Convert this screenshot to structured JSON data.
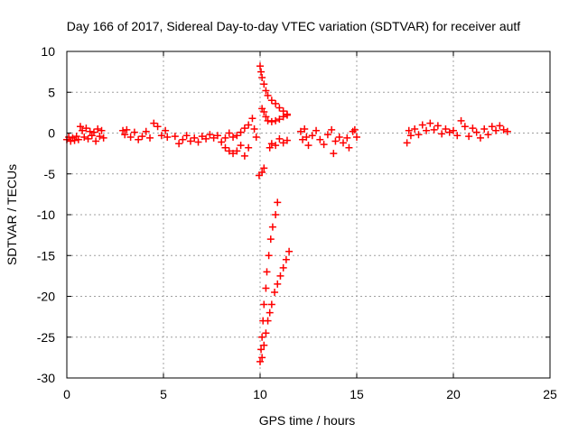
{
  "chart_data": {
    "type": "scatter",
    "title": "Day 166 of 2017, Sidereal Day-to-day VTEC variation (SDTVAR) for receiver autf",
    "xlabel": "GPS time / hours",
    "ylabel": "SDTVAR / TECUs",
    "xlim": [
      0,
      25
    ],
    "ylim": [
      -30,
      10
    ],
    "xticks": [
      0,
      5,
      10,
      15,
      20,
      25
    ],
    "yticks": [
      10,
      5,
      0,
      -5,
      -10,
      -15,
      -20,
      -25,
      -30
    ],
    "grid": true,
    "marker": "+",
    "color": "#ff0000",
    "series": [
      {
        "name": "SDTVAR",
        "points": [
          [
            0,
            -0.8
          ],
          [
            0.1,
            -0.5
          ],
          [
            0.2,
            -1
          ],
          [
            0.3,
            -0.6
          ],
          [
            0.4,
            -0.9
          ],
          [
            0.5,
            -0.4
          ],
          [
            0.6,
            -0.8
          ],
          [
            0.7,
            0.8
          ],
          [
            0.8,
            0.3
          ],
          [
            0.9,
            -0.5
          ],
          [
            1.0,
            0.6
          ],
          [
            1.1,
            -0.7
          ],
          [
            1.2,
            0.2
          ],
          [
            1.3,
            -0.3
          ],
          [
            1.4,
            0.1
          ],
          [
            1.5,
            -1
          ],
          [
            1.6,
            0.5
          ],
          [
            1.7,
            -0.4
          ],
          [
            1.8,
            0.3
          ],
          [
            1.9,
            -0.6
          ],
          [
            2.9,
            0.3
          ],
          [
            3.0,
            -0.2
          ],
          [
            3.1,
            0.4
          ],
          [
            3.3,
            -0.5
          ],
          [
            3.5,
            0.1
          ],
          [
            3.7,
            -0.8
          ],
          [
            3.9,
            -0.4
          ],
          [
            4.1,
            0.2
          ],
          [
            4.3,
            -0.6
          ],
          [
            4.5,
            1.2
          ],
          [
            4.7,
            0.8
          ],
          [
            4.9,
            -0.3
          ],
          [
            5.1,
            0.3
          ],
          [
            5.2,
            -0.5
          ],
          [
            5.6,
            -0.4
          ],
          [
            5.8,
            -1.3
          ],
          [
            6.0,
            -0.8
          ],
          [
            6.2,
            -0.3
          ],
          [
            6.4,
            -1.0
          ],
          [
            6.6,
            -0.6
          ],
          [
            6.8,
            -1.1
          ],
          [
            7.0,
            -0.4
          ],
          [
            7.2,
            -0.7
          ],
          [
            7.4,
            -0.2
          ],
          [
            7.6,
            -0.6
          ],
          [
            7.8,
            -0.3
          ],
          [
            8.0,
            -1.1
          ],
          [
            8.2,
            -1.8
          ],
          [
            8.4,
            -2.2
          ],
          [
            8.6,
            -2.5
          ],
          [
            8.8,
            -2.2
          ],
          [
            9.0,
            -1.5
          ],
          [
            9.2,
            -2.8
          ],
          [
            9.4,
            -1.8
          ],
          [
            8.4,
            0.0
          ],
          [
            8.6,
            -0.5
          ],
          [
            8.8,
            -0.3
          ],
          [
            9.0,
            0.1
          ],
          [
            9.2,
            0.6
          ],
          [
            9.4,
            1.0
          ],
          [
            9.6,
            1.8
          ],
          [
            8.2,
            -0.6
          ],
          [
            9.8,
            -0.5
          ],
          [
            9.7,
            0.5
          ],
          [
            10.0,
            8.2
          ],
          [
            10.05,
            7.5
          ],
          [
            10.1,
            6.8
          ],
          [
            10.2,
            6.0
          ],
          [
            10.3,
            5.2
          ],
          [
            10.4,
            4.6
          ],
          [
            10.6,
            4.0
          ],
          [
            10.8,
            3.6
          ],
          [
            11.0,
            3.1
          ],
          [
            11.2,
            2.7
          ],
          [
            11.4,
            2.3
          ],
          [
            10.1,
            3.0
          ],
          [
            10.2,
            2.6
          ],
          [
            10.3,
            2.0
          ],
          [
            10.4,
            1.5
          ],
          [
            10.6,
            1.4
          ],
          [
            10.8,
            1.5
          ],
          [
            11.0,
            1.7
          ],
          [
            11.2,
            2.0
          ],
          [
            11.4,
            2.2
          ],
          [
            10.5,
            -1.8
          ],
          [
            10.6,
            -1.3
          ],
          [
            10.8,
            -1.5
          ],
          [
            11.0,
            -0.7
          ],
          [
            11.2,
            -1.2
          ],
          [
            11.4,
            -0.9
          ],
          [
            9.95,
            -5.2
          ],
          [
            10.1,
            -4.8
          ],
          [
            10.2,
            -4.3
          ],
          [
            10.0,
            -28
          ],
          [
            10.05,
            -26.5
          ],
          [
            10.1,
            -25
          ],
          [
            10.15,
            -23
          ],
          [
            10.2,
            -21
          ],
          [
            10.3,
            -19
          ],
          [
            10.35,
            -17
          ],
          [
            10.45,
            -15
          ],
          [
            10.55,
            -13
          ],
          [
            10.65,
            -11.5
          ],
          [
            10.8,
            -10
          ],
          [
            10.9,
            -8.5
          ],
          [
            10.1,
            -27.5
          ],
          [
            10.2,
            -26
          ],
          [
            10.3,
            -24.5
          ],
          [
            10.4,
            -23
          ],
          [
            10.5,
            -22
          ],
          [
            10.6,
            -21
          ],
          [
            10.75,
            -19.5
          ],
          [
            10.9,
            -18.5
          ],
          [
            11.05,
            -17.5
          ],
          [
            11.2,
            -16.5
          ],
          [
            11.35,
            -15.5
          ],
          [
            11.5,
            -14.5
          ],
          [
            12.1,
            0.2
          ],
          [
            12.2,
            -0.8
          ],
          [
            12.3,
            0.5
          ],
          [
            12.4,
            -0.5
          ],
          [
            12.5,
            -1.5
          ],
          [
            12.7,
            -0.3
          ],
          [
            12.9,
            0.3
          ],
          [
            13.1,
            -0.8
          ],
          [
            13.3,
            -1.4
          ],
          [
            13.5,
            -0.2
          ],
          [
            13.7,
            0.4
          ],
          [
            13.8,
            -2.5
          ],
          [
            13.9,
            -1.0
          ],
          [
            14.1,
            -0.5
          ],
          [
            14.3,
            -1.2
          ],
          [
            14.5,
            -0.6
          ],
          [
            14.6,
            -1.8
          ],
          [
            14.8,
            0.2
          ],
          [
            14.9,
            0.4
          ],
          [
            15.0,
            -0.5
          ],
          [
            17.6,
            -1.2
          ],
          [
            17.7,
            0.3
          ],
          [
            17.8,
            -0.3
          ],
          [
            18.0,
            0.5
          ],
          [
            18.2,
            -0.2
          ],
          [
            18.4,
            1.0
          ],
          [
            18.6,
            0.3
          ],
          [
            18.8,
            1.2
          ],
          [
            19.0,
            0.4
          ],
          [
            19.2,
            0.9
          ],
          [
            19.4,
            -0.1
          ],
          [
            19.6,
            0.5
          ],
          [
            19.8,
            0.1
          ],
          [
            20.0,
            0.3
          ],
          [
            20.2,
            -0.3
          ],
          [
            20.4,
            1.5
          ],
          [
            20.6,
            0.8
          ],
          [
            20.8,
            -0.4
          ],
          [
            21.0,
            0.6
          ],
          [
            21.2,
            0.1
          ],
          [
            21.4,
            -0.6
          ],
          [
            21.6,
            0.5
          ],
          [
            21.8,
            -0.2
          ],
          [
            22.0,
            0.8
          ],
          [
            22.2,
            0.3
          ],
          [
            22.4,
            0.9
          ],
          [
            22.6,
            0.4
          ],
          [
            22.8,
            0.2
          ]
        ]
      }
    ]
  }
}
